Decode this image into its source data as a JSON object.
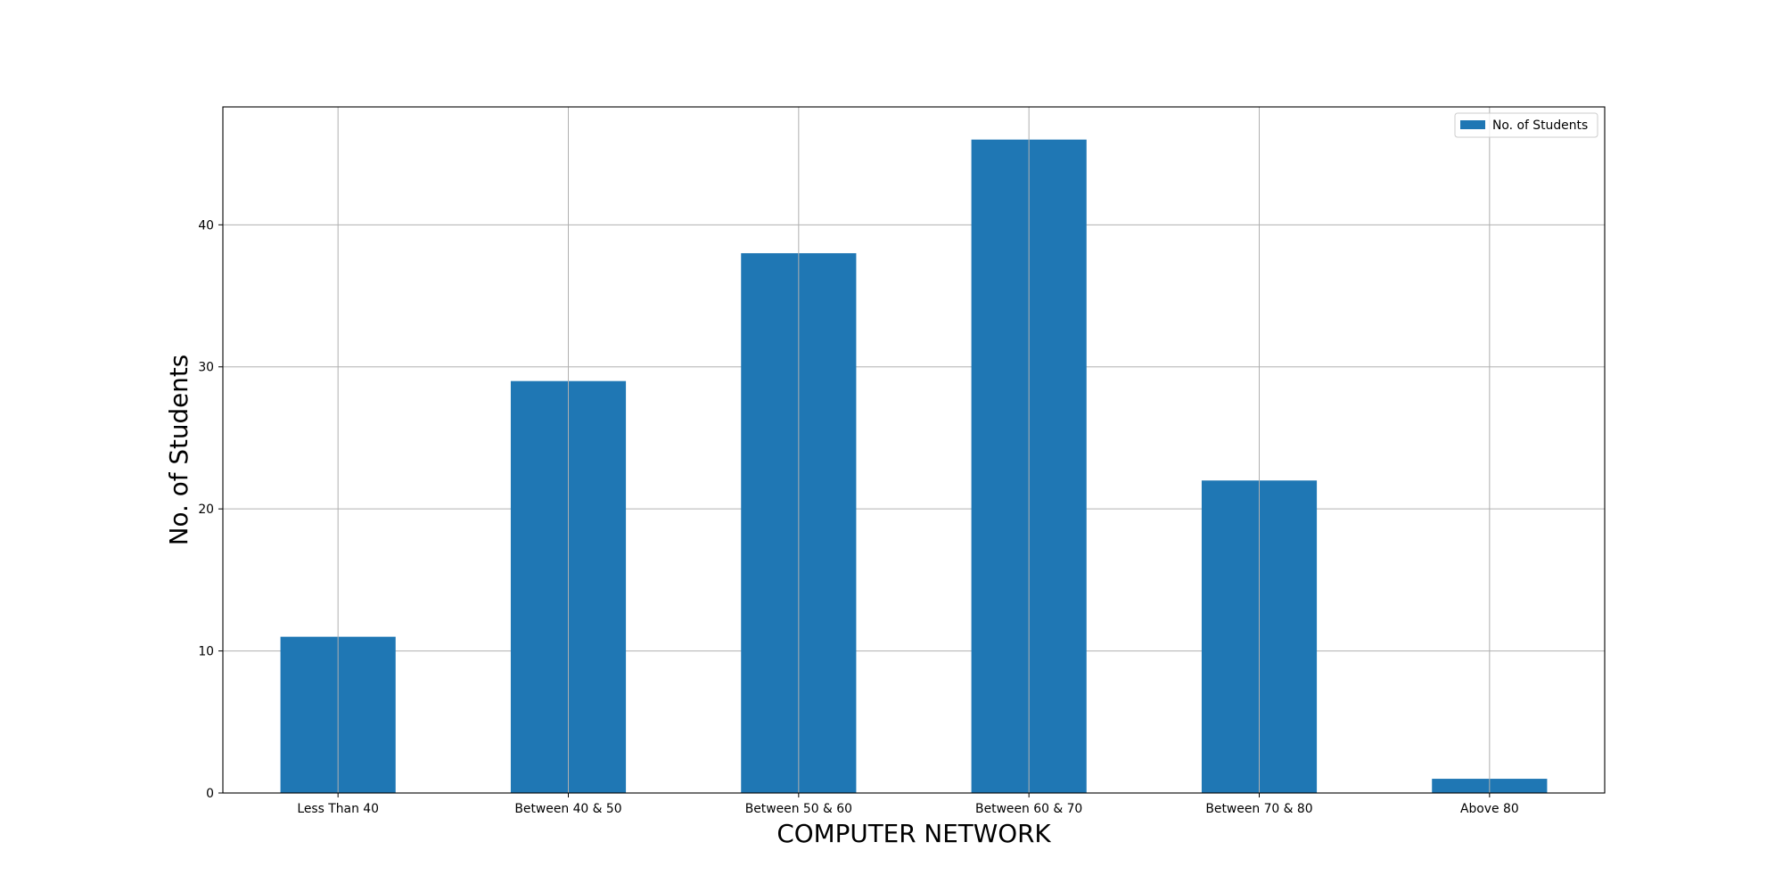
{
  "chart_data": {
    "type": "bar",
    "title": "",
    "xlabel": "COMPUTER NETWORK",
    "ylabel": "No. of Students",
    "categories": [
      "Less Than 40",
      "Between 40 & 50",
      "Between 50 & 60",
      "Between 60 & 70",
      "Between 70 & 80",
      "Above 80"
    ],
    "series": [
      {
        "name": "No. of Students",
        "values": [
          11,
          29,
          38,
          46,
          22,
          1
        ],
        "color": "#1f77b4"
      }
    ],
    "ylim": [
      0,
      48.3
    ],
    "yticks": [
      0,
      10,
      20,
      30,
      40
    ],
    "grid": true,
    "legend_position": "top-right"
  }
}
